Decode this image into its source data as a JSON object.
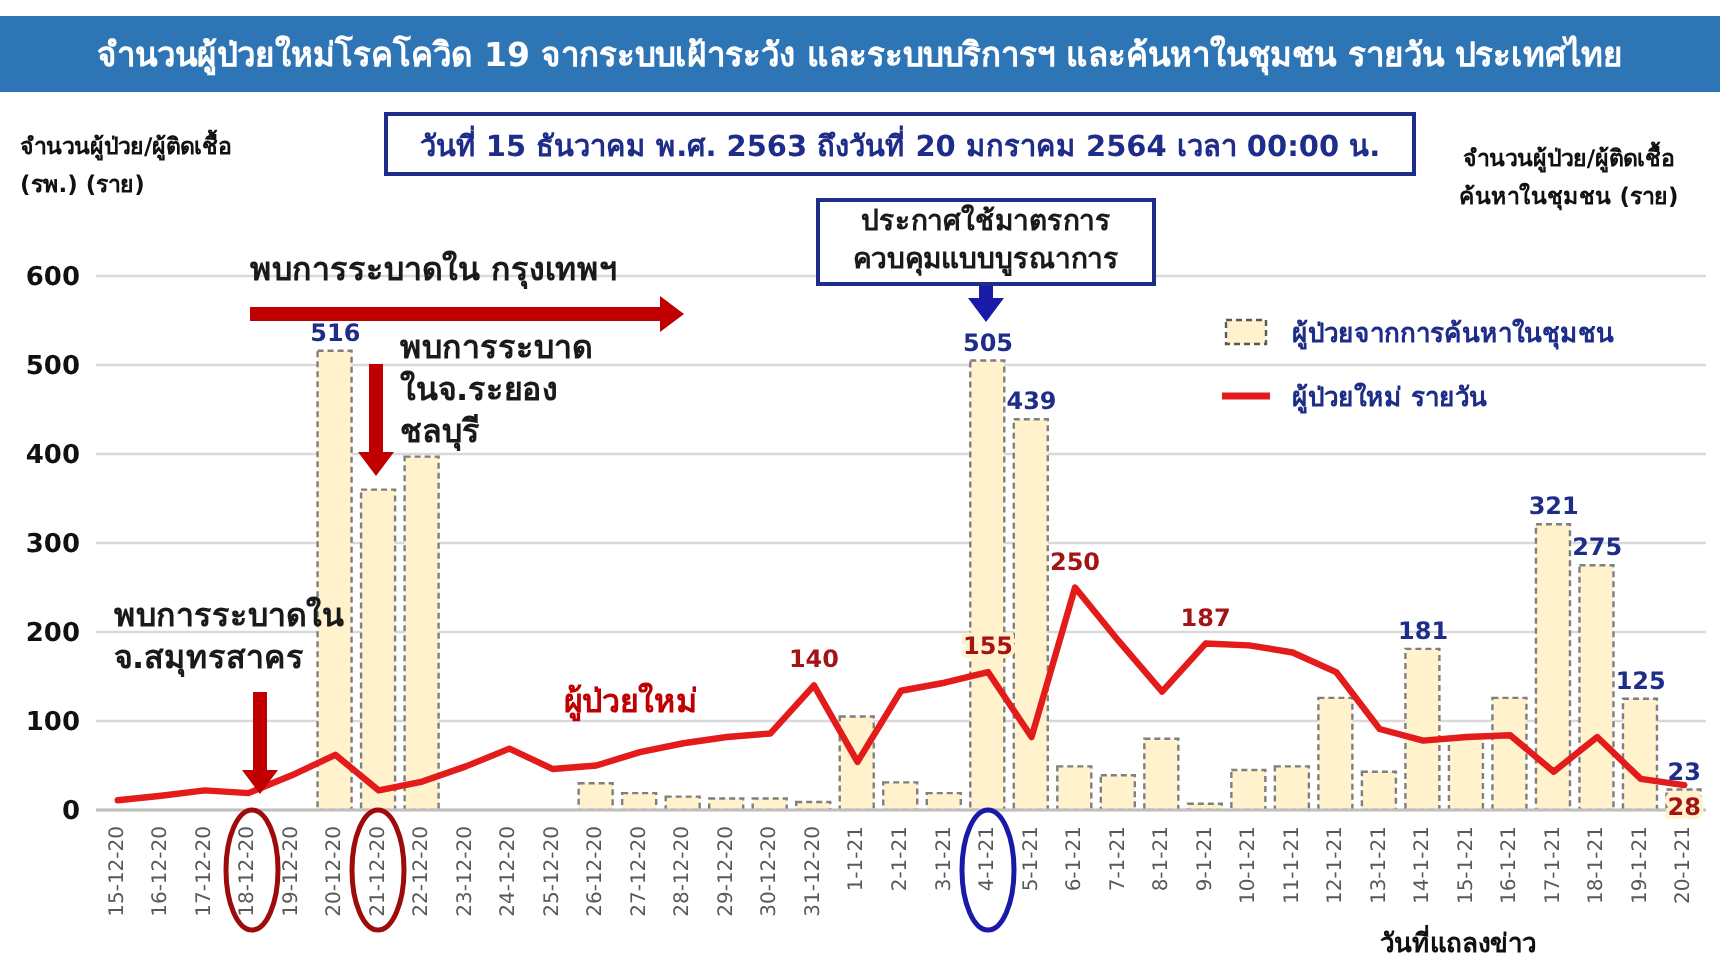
{
  "chart_data": {
    "type": "bar",
    "title": "จำนวนผู้ป่วยใหม่โรคโควิด 19 จากระบบเฝ้าระวัง และระบบบริการฯ และค้นหาในชุมชน รายวัน ประเทศไทย",
    "subtitle": "วันที่ 15 ธันวาคม พ.ศ. 2563 ถึงวันที่ 20 มกราคม 2564 เวลา 00:00 น.",
    "xlabel": "วันที่แถลงข่าว",
    "ylabel": "จำนวนผู้ป่วย/ผู้ติดเชื้อ\n(รพ.) (ราย)",
    "y2label": "จำนวนผู้ป่วย/ผู้ติดเชื้อ\nค้นหาในชุมชน (ราย)",
    "categories": [
      "15-12-20",
      "16-12-20",
      "17-12-20",
      "18-12-20",
      "19-12-20",
      "20-12-20",
      "21-12-20",
      "22-12-20",
      "23-12-20",
      "24-12-20",
      "25-12-20",
      "26-12-20",
      "27-12-20",
      "28-12-20",
      "29-12-20",
      "30-12-20",
      "31-12-20",
      "1-1-21",
      "2-1-21",
      "3-1-21",
      "4-1-21",
      "5-1-21",
      "6-1-21",
      "7-1-21",
      "8-1-21",
      "9-1-21",
      "10-1-21",
      "11-1-21",
      "12-1-21",
      "13-1-21",
      "14-1-21",
      "15-1-21",
      "16-1-21",
      "17-1-21",
      "18-1-21",
      "19-1-21",
      "20-1-21"
    ],
    "series": [
      {
        "name": "ผู้ป่วยจากการค้นหาในชุมชน",
        "color": "#fff2cc",
        "values": [
          null,
          null,
          null,
          null,
          null,
          516,
          360,
          397,
          null,
          null,
          null,
          30,
          19,
          15,
          13,
          13,
          9,
          105,
          31,
          19,
          505,
          439,
          49,
          39,
          80,
          7,
          45,
          49,
          126,
          43,
          181,
          82,
          126,
          321,
          275,
          125,
          23
        ],
        "value_labels": [
          null,
          null,
          null,
          null,
          null,
          "516",
          null,
          null,
          null,
          null,
          null,
          null,
          null,
          null,
          null,
          null,
          null,
          null,
          null,
          null,
          "505",
          "439",
          null,
          null,
          null,
          null,
          null,
          null,
          null,
          null,
          "181",
          null,
          null,
          "321",
          "275",
          "125",
          "23"
        ]
      },
      {
        "name": "ผู้ป่วยใหม่ รายวัน",
        "type": "line",
        "color": "#e31b1b",
        "values": [
          11,
          16,
          22,
          19,
          39,
          62,
          22,
          32,
          49,
          69,
          46,
          50,
          65,
          75,
          82,
          86,
          140,
          54,
          134,
          143,
          155,
          82,
          250,
          190,
          133,
          187,
          185,
          177,
          155,
          91,
          78,
          82,
          84,
          43,
          82,
          35,
          28
        ],
        "value_labels": [
          null,
          null,
          null,
          null,
          null,
          null,
          null,
          null,
          null,
          null,
          null,
          null,
          null,
          null,
          null,
          null,
          "140",
          null,
          null,
          null,
          "155",
          null,
          "250",
          null,
          null,
          "187",
          null,
          null,
          null,
          null,
          null,
          null,
          null,
          null,
          null,
          null,
          "28"
        ]
      }
    ],
    "ylim": [
      0,
      600
    ],
    "yticks": [
      0,
      100,
      200,
      300,
      400,
      500,
      600
    ],
    "grid": "y",
    "legend": "top right",
    "marker": "none",
    "annotations": [
      "พบการระบาดใน กรุงเทพฯ",
      "พบการระบาด\nในจ.ระยอง\nชลบุรี",
      "พบการระบาดใน\nจ.สมุทรสาคร",
      "ประกาศใช้มาตรการ\nควบคุมแบบบูรณาการ",
      "ผู้ป่วยใหม่"
    ]
  }
}
